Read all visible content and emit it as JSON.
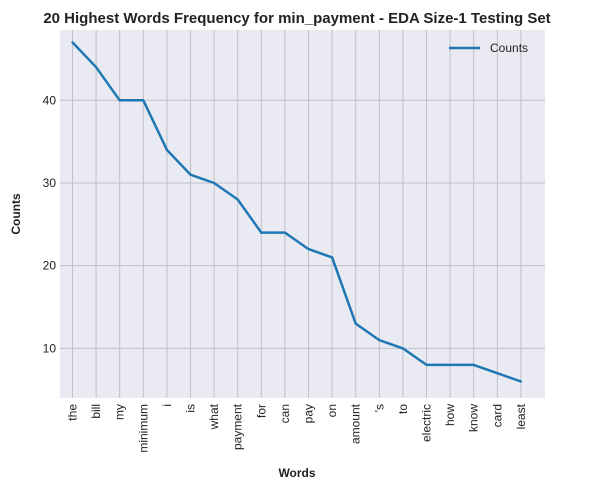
{
  "chart_data": {
    "type": "line",
    "title": "20 Highest Words Frequency for min_payment - EDA Size-1 Testing Set",
    "xlabel": "Words",
    "ylabel": "Counts",
    "categories": [
      "the",
      "bill",
      "my",
      "minimum",
      "i",
      "is",
      "what",
      "payment",
      "for",
      "can",
      "pay",
      "on",
      "amount",
      "'s",
      "to",
      "electric",
      "how",
      "know",
      "card",
      "least"
    ],
    "series": [
      {
        "name": "Counts",
        "values": [
          47,
          44,
          40,
          40,
          34,
          31,
          30,
          28,
          24,
          24,
          22,
          21,
          13,
          11,
          10,
          8,
          8,
          8,
          7,
          6
        ],
        "color": "#1f77b4"
      }
    ],
    "yticks": [
      10,
      20,
      30,
      40
    ],
    "ylim": [
      4,
      48.5
    ],
    "grid": true,
    "legend_position": "top-right",
    "colors": {
      "plot_background": "#eaeaf2",
      "grid": "#c0c0c8"
    }
  }
}
